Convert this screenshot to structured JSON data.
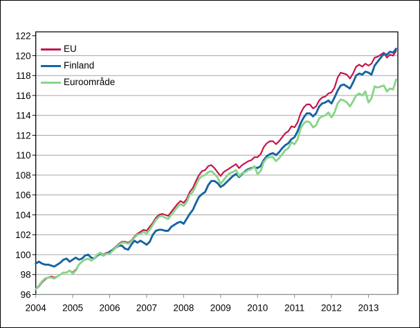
{
  "chart_data": {
    "type": "line",
    "title": "",
    "x_start": "2004-01",
    "frequency": "monthly",
    "x_ticks": [
      "2004",
      "2005",
      "2006",
      "2007",
      "2008",
      "2009",
      "2010",
      "2011",
      "2012",
      "2013"
    ],
    "y_ticks": [
      96,
      98,
      100,
      102,
      104,
      106,
      108,
      110,
      112,
      114,
      116,
      118,
      120,
      122
    ],
    "ylim": [
      95.7,
      122.4
    ],
    "grid": true,
    "legend_position": "top-left",
    "colors": {
      "grid": "#a4a4a4",
      "axis_bottom": "#8a8a8a",
      "plot_border": "#000000",
      "outer_frame": "#000000",
      "text": "#000000"
    },
    "series": [
      {
        "name": "EU",
        "color": "#c3154e",
        "values": [
          96.5,
          96.8,
          97.2,
          97.5,
          97.7,
          97.8,
          97.7,
          97.8,
          98.0,
          98.2,
          98.2,
          98.4,
          98.2,
          98.5,
          99.0,
          99.3,
          99.5,
          99.6,
          99.4,
          99.6,
          100.0,
          100.2,
          100.0,
          100.2,
          100.2,
          100.5,
          100.8,
          101.1,
          101.3,
          101.3,
          101.2,
          101.4,
          101.8,
          102.1,
          102.3,
          102.5,
          102.4,
          102.8,
          103.2,
          103.7,
          104.0,
          104.1,
          104.0,
          103.9,
          104.3,
          104.7,
          105.1,
          105.4,
          105.2,
          105.6,
          106.3,
          106.7,
          107.4,
          108.0,
          108.4,
          108.5,
          108.9,
          109.0,
          108.7,
          108.3,
          107.9,
          108.3,
          108.5,
          108.7,
          108.9,
          109.1,
          108.7,
          109.0,
          109.2,
          109.4,
          109.5,
          109.8,
          109.8,
          110.1,
          110.8,
          111.2,
          111.4,
          111.4,
          111.1,
          111.4,
          111.8,
          112.2,
          112.4,
          112.9,
          112.8,
          113.3,
          114.2,
          114.8,
          115.1,
          115.1,
          114.7,
          114.9,
          115.5,
          115.8,
          115.9,
          116.2,
          116.3,
          116.8,
          117.8,
          118.3,
          118.2,
          118.1,
          117.7,
          118.2,
          118.9,
          119.1,
          118.9,
          119.2,
          119.0,
          119.2,
          119.8,
          119.9,
          120.1,
          120.3,
          119.8,
          120.1,
          120.0,
          120.5
        ]
      },
      {
        "name": "Finland",
        "color": "#1563a3",
        "values": [
          99.1,
          99.3,
          99.1,
          99.0,
          99.0,
          98.9,
          98.8,
          99.0,
          99.2,
          99.5,
          99.6,
          99.3,
          99.5,
          99.7,
          99.5,
          99.6,
          99.9,
          100.0,
          99.7,
          99.6,
          99.9,
          100.1,
          99.9,
          100.1,
          100.3,
          100.5,
          100.7,
          100.9,
          100.9,
          100.6,
          100.5,
          101.0,
          101.4,
          101.2,
          101.4,
          101.2,
          101.0,
          101.3,
          102.0,
          102.4,
          102.5,
          102.5,
          102.4,
          102.4,
          102.8,
          103.0,
          103.2,
          103.3,
          103.1,
          103.6,
          104.1,
          104.5,
          105.2,
          105.8,
          106.1,
          106.3,
          107.0,
          107.4,
          107.4,
          107.2,
          106.8,
          107.0,
          107.3,
          107.6,
          107.9,
          108.1,
          107.8,
          108.1,
          108.4,
          108.6,
          108.7,
          108.8,
          108.7,
          108.9,
          109.5,
          109.9,
          110.1,
          110.2,
          110.0,
          110.3,
          110.7,
          111.0,
          111.2,
          111.6,
          111.8,
          112.4,
          113.2,
          113.8,
          114.2,
          114.2,
          113.9,
          114.2,
          114.9,
          115.2,
          115.3,
          115.5,
          115.2,
          115.8,
          116.5,
          117.0,
          117.1,
          116.9,
          116.7,
          117.3,
          118.0,
          118.2,
          118.1,
          118.4,
          118.3,
          118.1,
          119.0,
          119.4,
          119.8,
          120.2,
          120.1,
          120.4,
          120.3,
          120.7
        ]
      },
      {
        "name": "Euroområde",
        "color": "#88d588",
        "values": [
          96.5,
          96.9,
          97.3,
          97.6,
          97.7,
          97.7,
          97.6,
          97.8,
          98.0,
          98.2,
          98.2,
          98.4,
          98.1,
          98.4,
          99.0,
          99.3,
          99.5,
          99.6,
          99.4,
          99.6,
          100.0,
          100.2,
          99.9,
          100.1,
          100.1,
          100.4,
          100.7,
          101.0,
          101.2,
          101.2,
          101.1,
          101.3,
          101.7,
          102.0,
          102.1,
          102.3,
          102.1,
          102.5,
          103.0,
          103.5,
          103.8,
          103.9,
          103.7,
          103.6,
          104.0,
          104.4,
          104.8,
          105.1,
          104.9,
          105.3,
          106.0,
          106.3,
          107.0,
          107.6,
          107.9,
          108.0,
          108.3,
          108.4,
          108.1,
          107.8,
          107.1,
          107.5,
          107.9,
          108.2,
          108.3,
          108.5,
          107.9,
          108.2,
          108.3,
          108.5,
          108.6,
          108.9,
          108.1,
          108.4,
          109.3,
          109.7,
          109.8,
          109.8,
          109.4,
          109.7,
          110.1,
          110.5,
          110.7,
          111.3,
          111.1,
          111.6,
          112.7,
          113.2,
          113.4,
          113.3,
          112.8,
          113.0,
          113.7,
          113.9,
          114.0,
          114.3,
          113.8,
          114.3,
          115.2,
          115.6,
          115.5,
          115.3,
          114.9,
          115.4,
          116.0,
          116.2,
          116.0,
          116.4,
          115.3,
          115.7,
          116.9,
          116.8,
          116.9,
          117.0,
          116.4,
          116.7,
          116.6,
          117.6
        ]
      }
    ]
  }
}
